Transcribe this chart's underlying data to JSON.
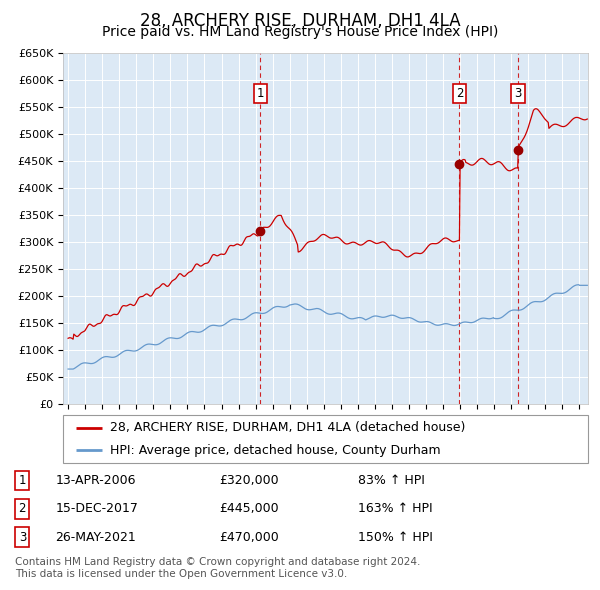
{
  "title": "28, ARCHERY RISE, DURHAM, DH1 4LA",
  "subtitle": "Price paid vs. HM Land Registry's House Price Index (HPI)",
  "legend_line1": "28, ARCHERY RISE, DURHAM, DH1 4LA (detached house)",
  "legend_line2": "HPI: Average price, detached house, County Durham",
  "footer1": "Contains HM Land Registry data © Crown copyright and database right 2024.",
  "footer2": "This data is licensed under the Open Government Licence v3.0.",
  "transactions": [
    {
      "label": "1",
      "date": "13-APR-2006",
      "price": 320000,
      "pct": "83%",
      "direction": "↑"
    },
    {
      "label": "2",
      "date": "15-DEC-2017",
      "price": 445000,
      "pct": "163%",
      "direction": "↑"
    },
    {
      "label": "3",
      "date": "26-MAY-2021",
      "price": 470000,
      "pct": "150%",
      "direction": "↑"
    }
  ],
  "transaction_dates_decimal": [
    2006.28,
    2017.96,
    2021.4
  ],
  "transaction_prices": [
    320000,
    445000,
    470000
  ],
  "ylim": [
    0,
    650000
  ],
  "yticks": [
    0,
    50000,
    100000,
    150000,
    200000,
    250000,
    300000,
    350000,
    400000,
    450000,
    500000,
    550000,
    600000,
    650000
  ],
  "xlim_start": 1994.7,
  "xlim_end": 2025.5,
  "background_color": "#dce9f5",
  "plot_bg": "#dce9f5",
  "grid_color": "#ffffff",
  "red_line_color": "#cc0000",
  "blue_line_color": "#6699cc",
  "dashed_line_color": "#cc0000",
  "marker_color": "#990000",
  "box_edge_color": "#cc0000",
  "title_fontsize": 12,
  "subtitle_fontsize": 10,
  "tick_fontsize": 8,
  "legend_fontsize": 9,
  "footer_fontsize": 7.5
}
